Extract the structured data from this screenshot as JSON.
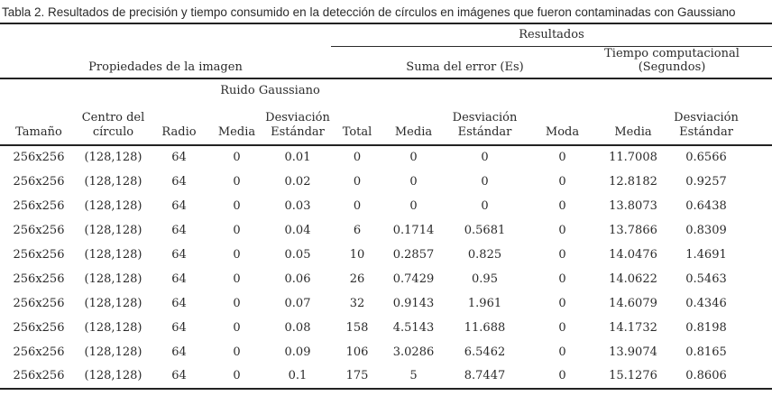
{
  "page": {
    "caption": "Tabla 2. Resultados de precisión y tiempo consumido en la detección de círculos en imágenes que fueron contaminadas con Gaussiano"
  },
  "table": {
    "group_headers": {
      "resultados": "Resultados",
      "propiedades_imagen": "Propiedades de la imagen",
      "suma_error": "Suma del error (Es)",
      "tiempo_computacional": "Tiempo computacional (Segundos)",
      "ruido_gaussiano": "Ruido Gaussiano"
    },
    "column_headers": [
      "Tamaño",
      "Centro del círculo",
      "Radio",
      "Media",
      "Desviación Estándar",
      "Total",
      "Media",
      "Desviación Estándar",
      "Moda",
      "Media",
      "Desviación Estándar"
    ],
    "rows": [
      [
        "256x256",
        "(128,128)",
        "64",
        "0",
        "0.01",
        "0",
        "0",
        "0",
        "0",
        "11.7008",
        "0.6566"
      ],
      [
        "256x256",
        "(128,128)",
        "64",
        "0",
        "0.02",
        "0",
        "0",
        "0",
        "0",
        "12.8182",
        "0.9257"
      ],
      [
        "256x256",
        "(128,128)",
        "64",
        "0",
        "0.03",
        "0",
        "0",
        "0",
        "0",
        "13.8073",
        "0.6438"
      ],
      [
        "256x256",
        "(128,128)",
        "64",
        "0",
        "0.04",
        "6",
        "0.1714",
        "0.5681",
        "0",
        "13.7866",
        "0.8309"
      ],
      [
        "256x256",
        "(128,128)",
        "64",
        "0",
        "0.05",
        "10",
        "0.2857",
        "0.825",
        "0",
        "14.0476",
        "1.4691"
      ],
      [
        "256x256",
        "(128,128)",
        "64",
        "0",
        "0.06",
        "26",
        "0.7429",
        "0.95",
        "0",
        "14.0622",
        "0.5463"
      ],
      [
        "256x256",
        "(128,128)",
        "64",
        "0",
        "0.07",
        "32",
        "0.9143",
        "1.961",
        "0",
        "14.6079",
        "0.4346"
      ],
      [
        "256x256",
        "(128,128)",
        "64",
        "0",
        "0.08",
        "158",
        "4.5143",
        "11.688",
        "0",
        "14.1732",
        "0.8198"
      ],
      [
        "256x256",
        "(128,128)",
        "64",
        "0",
        "0.09",
        "106",
        "3.0286",
        "6.5462",
        "0",
        "13.9074",
        "0.8165"
      ],
      [
        "256x256",
        "(128,128)",
        "64",
        "0",
        "0.1",
        "175",
        "5",
        "8.7447",
        "0",
        "15.1276",
        "0.8606"
      ]
    ]
  }
}
